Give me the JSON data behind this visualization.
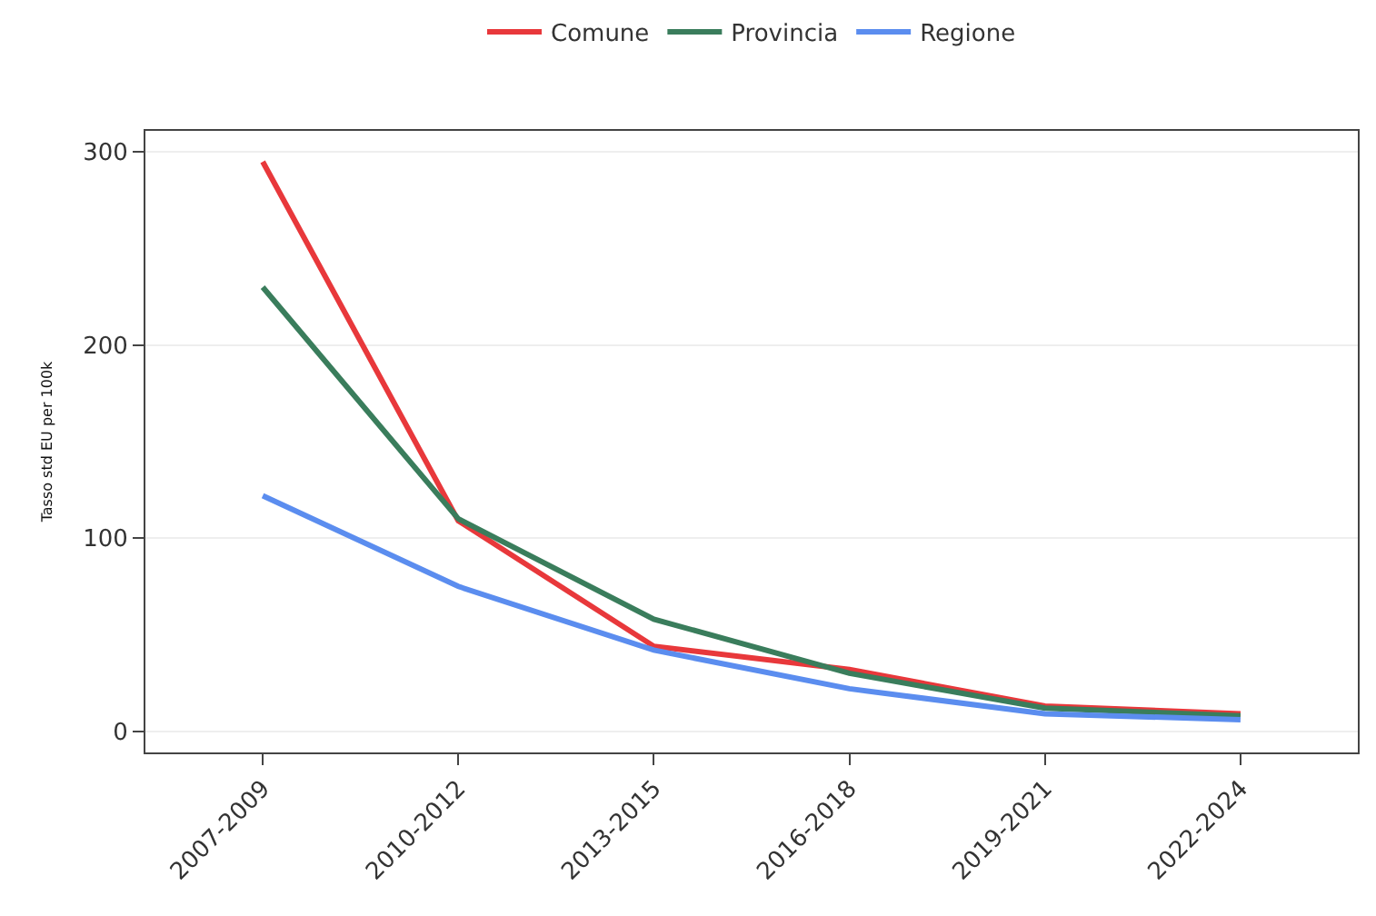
{
  "chart_data": {
    "type": "line",
    "ylabel": "Tasso std EU per 100k",
    "categories": [
      "2007-2009",
      "2010-2012",
      "2013-2015",
      "2016-2018",
      "2019-2021",
      "2022-2024"
    ],
    "series": [
      {
        "name": "Comune",
        "color": "#e8383b",
        "values": [
          295,
          109,
          44,
          32,
          13,
          9
        ]
      },
      {
        "name": "Provincia",
        "color": "#3a7d5c",
        "values": [
          230,
          110,
          58,
          30,
          12,
          8
        ]
      },
      {
        "name": "Regione",
        "color": "#5b8def",
        "values": [
          122,
          75,
          42,
          22,
          9,
          6
        ]
      }
    ],
    "ylim": [
      -11,
      311
    ],
    "yticks": [
      0,
      100,
      200,
      300
    ],
    "grid": "y",
    "legend": "top",
    "marker": "none",
    "line_style": "solid"
  }
}
